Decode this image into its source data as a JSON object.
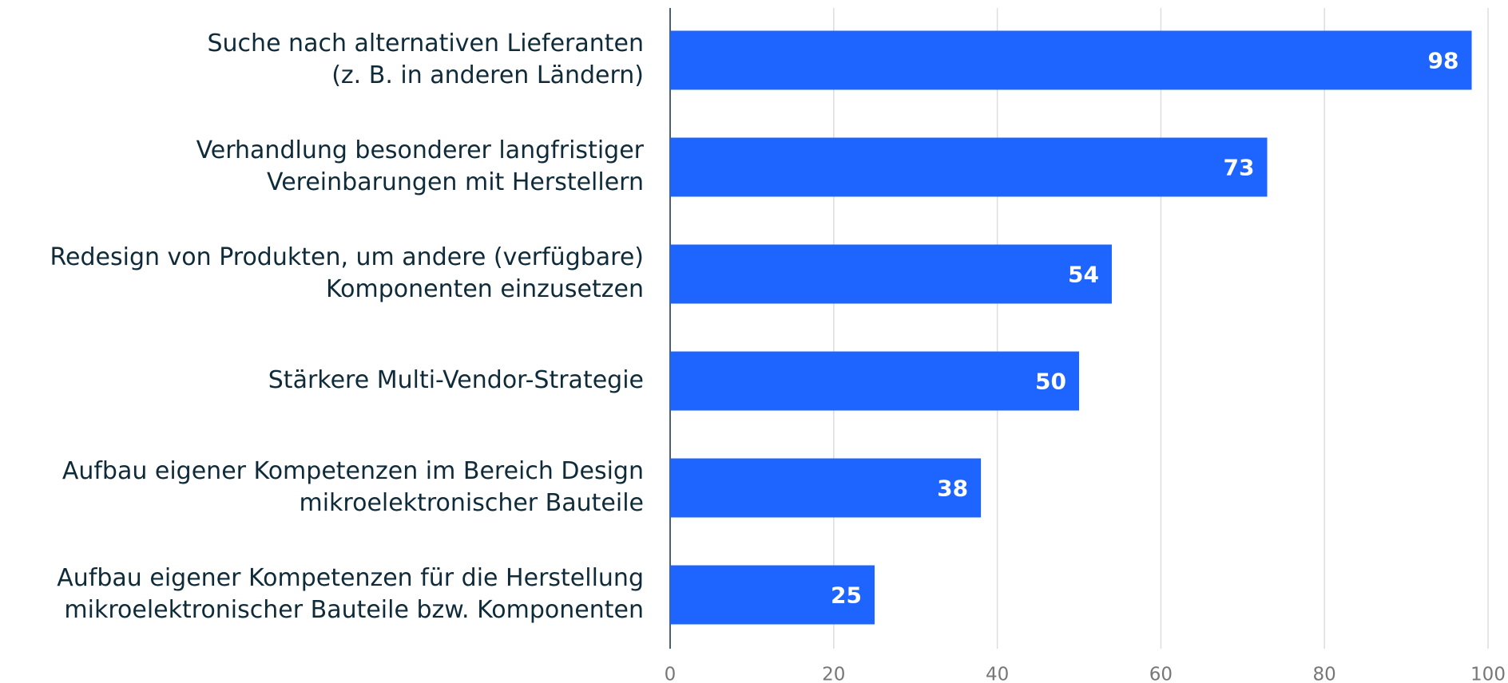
{
  "chart_data": {
    "type": "bar",
    "orientation": "horizontal",
    "categories": [
      [
        "Suche nach alternativen Lieferanten",
        "(z. B. in anderen Ländern)"
      ],
      [
        "Verhandlung besonderer langfristiger",
        "Vereinbarungen mit Herstellern"
      ],
      [
        "Redesign von Produkten, um andere (verfügbare)",
        "Komponenten einzusetzen"
      ],
      [
        "Stärkere Multi-Vendor-Strategie"
      ],
      [
        "Aufbau eigener Kompetenzen im Bereich Design",
        "mikroelektronischer Bauteile"
      ],
      [
        "Aufbau eigener Kompetenzen für die Herstellung",
        "mikroelektronischer Bauteile bzw. Komponenten"
      ]
    ],
    "values": [
      98,
      73,
      54,
      50,
      38,
      25
    ],
    "color": "#1e64ff",
    "xlim": [
      0,
      100
    ],
    "xticks": [
      0,
      20,
      40,
      60,
      80,
      100
    ],
    "grid": true
  }
}
